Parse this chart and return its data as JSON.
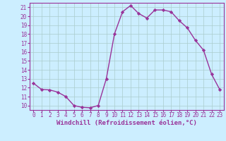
{
  "x": [
    0,
    1,
    2,
    3,
    4,
    5,
    6,
    7,
    8,
    9,
    10,
    11,
    12,
    13,
    14,
    15,
    16,
    17,
    18,
    19,
    20,
    21,
    22,
    23
  ],
  "y": [
    12.5,
    11.8,
    11.75,
    11.5,
    11.0,
    10.0,
    9.8,
    9.75,
    10.0,
    13.0,
    18.0,
    20.5,
    21.2,
    20.3,
    19.8,
    20.7,
    20.7,
    20.5,
    19.5,
    18.7,
    17.3,
    16.2,
    13.5,
    11.8
  ],
  "line_color": "#993399",
  "marker": "D",
  "marker_size": 2.2,
  "linewidth": 1.0,
  "bg_color": "#cceeff",
  "grid_color": "#aacccc",
  "xlabel": "Windchill (Refroidissement éolien,°C)",
  "xlabel_fontsize": 6.5,
  "tick_fontsize": 5.5,
  "ylim": [
    9.5,
    21.5
  ],
  "xlim": [
    -0.5,
    23.5
  ],
  "yticks": [
    10,
    11,
    12,
    13,
    14,
    15,
    16,
    17,
    18,
    19,
    20,
    21
  ],
  "xticks": [
    0,
    1,
    2,
    3,
    4,
    5,
    6,
    7,
    8,
    9,
    10,
    11,
    12,
    13,
    14,
    15,
    16,
    17,
    18,
    19,
    20,
    21,
    22,
    23
  ]
}
